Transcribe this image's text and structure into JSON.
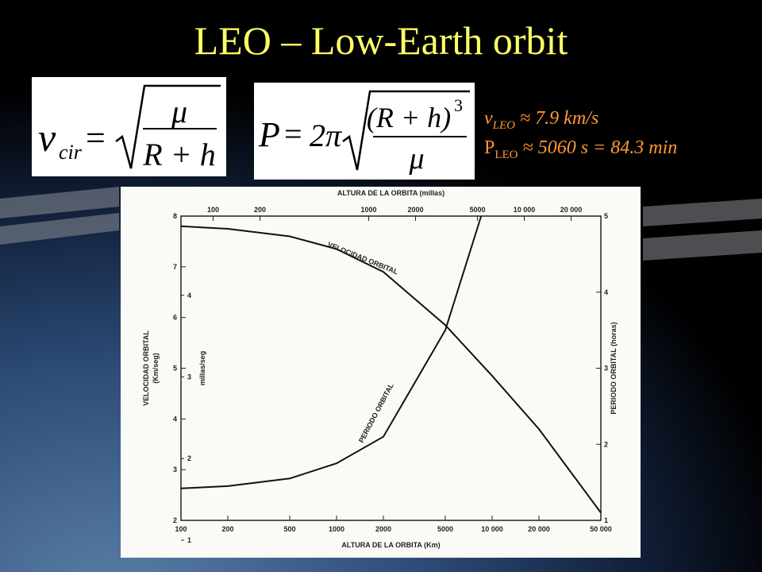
{
  "header": {
    "title": "LEO – Low-Earth orbit"
  },
  "formulas": [
    {
      "lhs": "v",
      "lhs_sub": "cir",
      "equals": "=",
      "numerator": "μ",
      "denominator": "R + h"
    },
    {
      "lhs": "P",
      "equals": "=",
      "coefficient": "2π",
      "numerator": "(R + h)",
      "exponent": "3",
      "denominator": "μ"
    }
  ],
  "notes": [
    {
      "symbol": "v",
      "sub": "LEO",
      "text": "≈ 7.9 km/s"
    },
    {
      "symbol": "P",
      "sub": "LEO",
      "text": "≈ 5060 s = 84.3 min"
    }
  ],
  "chart_data": {
    "type": "line",
    "xlabel": "ALTURA DE LA ORBITA (Km)",
    "x2label": "ALTURA DE LA ORBITA (millas)",
    "ylabel": "VELOCIDAD ORBITAL",
    "ylabel_unit": "(Km/seg)",
    "y3label": "millas/seg",
    "y2label": "PERIODO ORBITAL (horas)",
    "xlog": true,
    "xlim": [
      100,
      50000
    ],
    "xticks": [
      100,
      200,
      500,
      1000,
      2000,
      5000,
      {
        "value": 10000,
        "label": "10 000"
      },
      {
        "value": 20000,
        "label": "20 000"
      },
      {
        "value": 50000,
        "label": "50 000"
      }
    ],
    "x2lim": [
      62.14,
      31069
    ],
    "x2ticks": [
      100,
      200,
      1000,
      2000,
      5000,
      {
        "value": 10000,
        "label": "10 000"
      },
      {
        "value": 20000,
        "label": "20 000"
      }
    ],
    "ylim": [
      2,
      8
    ],
    "yticks": [
      2,
      3,
      4,
      5,
      6,
      7,
      8
    ],
    "y3lim": [
      1.243,
      4.971
    ],
    "y3ticks": [
      1,
      2,
      3,
      4
    ],
    "y2lim": [
      1,
      5
    ],
    "y2ticks": [
      1,
      2,
      3,
      4,
      5
    ],
    "series": [
      {
        "name": "VELOCIDAD ORBITAL",
        "color": "#111111",
        "x": [
          100,
          200,
          500,
          1000,
          2000,
          5000,
          10000,
          20000,
          50000
        ],
        "values": [
          7.8,
          7.75,
          7.6,
          7.35,
          6.9,
          5.85,
          4.85,
          3.8,
          2.15
        ]
      },
      {
        "name": "PERIODO ORBITAL",
        "color": "#111111",
        "axis": "y2",
        "x": [
          100,
          200,
          500,
          1000,
          2000,
          5000,
          8500
        ],
        "values": [
          1.42,
          1.45,
          1.55,
          1.75,
          2.1,
          3.5,
          5
        ]
      }
    ]
  }
}
